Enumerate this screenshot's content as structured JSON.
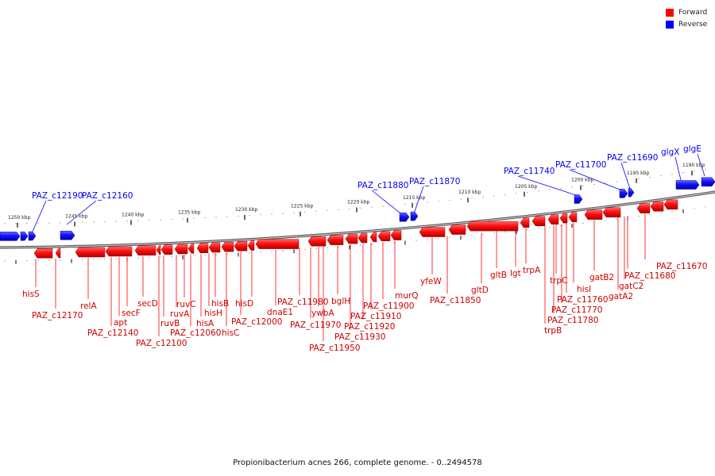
{
  "legend": {
    "forward_label": "Forward",
    "reverse_label": "Reverse",
    "forward_color": "#ff0000",
    "reverse_color": "#0000ff"
  },
  "caption": "Propionibacterium acnes 266, complete genome. - 0..2494578",
  "kbp_ticks": [
    "1250 kbp",
    "1245 kbp",
    "1240 kbp",
    "1235 kbp",
    "1230 kbp",
    "1225 kbp",
    "1220 kbp",
    "1215 kbp",
    "1210 kbp",
    "1205 kbp",
    "1200 kbp",
    "1195 kbp",
    "1190 kbp"
  ],
  "reverse_genes": [
    "PAZ_c12190",
    "PAZ_c12160",
    "PAZ_c11880",
    "PAZ_c11870",
    "PAZ_c11740",
    "PAZ_c11700",
    "PAZ_c11690",
    "glgX",
    "glgE"
  ],
  "forward_genes": [
    "hisS",
    "PAZ_c12170",
    "relA",
    "PAZ_c12140",
    "apt",
    "secF",
    "secD",
    "PAZ_c12100",
    "ruvB",
    "ruvA",
    "ruvC",
    "PAZ_c12060",
    "hisA",
    "hisH",
    "hisB",
    "hisC",
    "PAZ_c12000",
    "hisD",
    "dnaE1",
    "PAZ_c11980",
    "PAZ_c11970",
    "ywbA",
    "PAZ_c11950",
    "bglH",
    "PAZ_c11930",
    "PAZ_c11920",
    "PAZ_c11910",
    "PAZ_c11900",
    "murQ",
    "yfeW",
    "PAZ_c11850",
    "gltD",
    "gltB",
    "lgt",
    "trpA",
    "trpB",
    "PAZ_c11780",
    "trpC",
    "PAZ_c11770",
    "PAZ_c11760",
    "hisI",
    "gatB2",
    "gatA2",
    "gatC2",
    "PAZ_c11680",
    "PAZ_c11670"
  ]
}
